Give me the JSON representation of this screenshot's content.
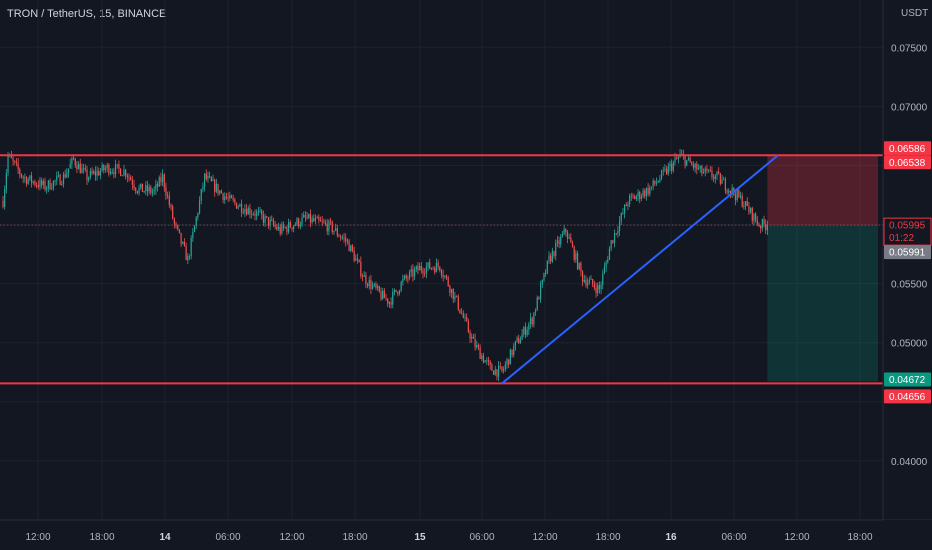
{
  "header": {
    "title": "TRON / TetherUS, 15, BINANCE"
  },
  "price_axis": {
    "currency": "USDT",
    "ticks": [
      "0.07500",
      "0.07000",
      "0.05500",
      "0.05000",
      "0.04000"
    ],
    "tick_values": [
      0.075,
      0.07,
      0.055,
      0.05,
      0.04
    ]
  },
  "time_axis": {
    "labels": [
      "12:00",
      "18:00",
      "14",
      "06:00",
      "12:00",
      "18:00",
      "15",
      "06:00",
      "12:00",
      "18:00",
      "16",
      "06:00",
      "12:00",
      "18:00"
    ]
  },
  "badges": {
    "resistance": "0.06586",
    "stop_loss": "0.06538",
    "last_price": "0.05995",
    "countdown": "01:22",
    "entry": "0.05991",
    "take_profit": "0.04672",
    "support": "0.04656"
  },
  "colors": {
    "background": "#131722",
    "grid": "#1e222d",
    "up": "#26a69a",
    "down": "#ef5350",
    "level_line": "#f23645",
    "trend_line": "#2962ff",
    "axis_text": "#b2b5be"
  },
  "chart_data": {
    "type": "candlestick",
    "symbol": "TRON / TetherUS",
    "interval": "15",
    "exchange": "BINANCE",
    "price_anchors": [
      [
        0,
        0.062
      ],
      [
        3,
        0.0658
      ],
      [
        12,
        0.064
      ],
      [
        25,
        0.0632
      ],
      [
        36,
        0.064
      ],
      [
        42,
        0.0655
      ],
      [
        50,
        0.064
      ],
      [
        62,
        0.0648
      ],
      [
        73,
        0.0645
      ],
      [
        80,
        0.063
      ],
      [
        90,
        0.0628
      ],
      [
        95,
        0.064
      ],
      [
        102,
        0.06
      ],
      [
        110,
        0.057
      ],
      [
        120,
        0.064
      ],
      [
        135,
        0.062
      ],
      [
        150,
        0.061
      ],
      [
        165,
        0.0595
      ],
      [
        180,
        0.0605
      ],
      [
        195,
        0.0598
      ],
      [
        205,
        0.0585
      ],
      [
        215,
        0.0555
      ],
      [
        225,
        0.054
      ],
      [
        230,
        0.0535
      ],
      [
        238,
        0.0552
      ],
      [
        248,
        0.0563
      ],
      [
        260,
        0.0565
      ],
      [
        270,
        0.0535
      ],
      [
        280,
        0.05
      ],
      [
        290,
        0.0478
      ],
      [
        297,
        0.0475
      ],
      [
        305,
        0.0498
      ],
      [
        315,
        0.052
      ],
      [
        325,
        0.057
      ],
      [
        335,
        0.0595
      ],
      [
        345,
        0.0555
      ],
      [
        355,
        0.0545
      ],
      [
        362,
        0.0585
      ],
      [
        372,
        0.062
      ],
      [
        385,
        0.063
      ],
      [
        398,
        0.065
      ],
      [
        403,
        0.0658
      ],
      [
        415,
        0.0645
      ],
      [
        425,
        0.064
      ],
      [
        440,
        0.062
      ],
      [
        450,
        0.06
      ],
      [
        455,
        0.05995
      ]
    ],
    "levels": {
      "resistance": 0.06586,
      "support": 0.04656,
      "stop_loss": 0.06538,
      "entry": 0.05991,
      "take_profit": 0.04672,
      "last_price": 0.05995
    },
    "trendline": [
      [
        0.04656
      ],
      [
        0.06586
      ]
    ],
    "y_range": [
      0.035,
      0.079
    ]
  }
}
